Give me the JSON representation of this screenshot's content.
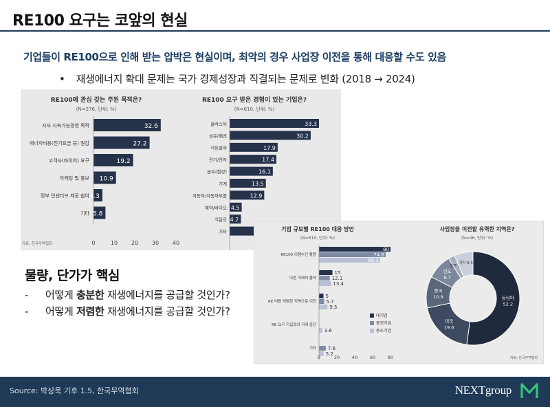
{
  "page": {
    "title": "RE100 요구는 코앞의 현실",
    "subtitle": "기업들이 RE100으로 인해 받는 압박은 현실이며, 최악의 경우 사업장 이전을 통해 대응할 수도 있음",
    "bullet_marker": "•",
    "bullet": "재생에너지 확대 문제는 국가 경제성장과 직결되는 문제로 변화 (2018 → 2024)"
  },
  "left_block": {
    "heading": "물량, 단가가 핵심",
    "items": [
      {
        "dash": "-",
        "pre": "어떻게 ",
        "emph": "충분한",
        "post": " 재생에너지를 공급할 것인가?"
      },
      {
        "dash": "-",
        "pre": "어떻게 ",
        "emph": "저렴한",
        "post": " 재생에너지를 공급할 것인가?"
      }
    ]
  },
  "footer": {
    "source": "Source: 박상욱 기후 1.5, 한국무역협회",
    "brand": "NEXTgroup"
  },
  "colors": {
    "navy": "#1e3a56",
    "bar_dark": "#25324a",
    "bar_mid": "#7d8ba3",
    "bar_light": "#b7c1d3",
    "panel_bg": "#e9e9e9"
  },
  "chart_data": [
    {
      "type": "bar",
      "orientation": "horizontal",
      "title": "RE100에 관심 갖는 주된 목적은?",
      "subtitle": "(N=276, 단위: %)",
      "categories": [
        "자사 지속가능경영 목적",
        "에너지비용(전기요금 등) 절감",
        "고객사(바이어) 요구",
        "마케팅 및 홍보",
        "정부 인센티브 제공 참여",
        "기타"
      ],
      "values": [
        32.6,
        27.2,
        19.2,
        10.9,
        4.3,
        5.8
      ],
      "xlim": [
        0,
        40
      ],
      "xticks": [
        "0",
        "10",
        "20",
        "30",
        "40"
      ],
      "source": "자료: 한국무역협회"
    },
    {
      "type": "bar",
      "orientation": "horizontal",
      "title": "RE100 요구 받은 경험이 있는 기업은?",
      "subtitle": "(N=610, 단위: %)",
      "categories": [
        "플라스틱",
        "섬유/패션",
        "석유화학",
        "전기/전자",
        "금속(철강)",
        "기계",
        "자동차/자동차부품",
        "제약/바이오",
        "식음료",
        "기타"
      ],
      "values": [
        33.3,
        30.2,
        17.9,
        17.4,
        16.1,
        13.5,
        12.9,
        4.5,
        4.2,
        null
      ],
      "labels": [
        "33.3",
        "30.2",
        "17.9",
        "17.4",
        "16.1",
        "13.5",
        "12.9",
        "4.5",
        "4.2",
        ""
      ]
    },
    {
      "type": "bar",
      "orientation": "horizontal",
      "title": "기업 규모별 RE100 대응 방안",
      "subtitle": "(N=610, 단위: %)",
      "categories": [
        "RE100 이행수단 활용",
        "다른 거래처 물색",
        "RE 비용 저렴한 지역으로 이전",
        "RE 요구 기업과의 거래 중단",
        "기타"
      ],
      "series": [
        {
          "name": "대기업",
          "values": [
            80,
            15,
            5,
            null,
            null
          ]
        },
        {
          "name": "중견기업",
          "values": [
            74.6,
            12.1,
            5.7,
            null,
            7.6
          ]
        },
        {
          "name": "중소기업",
          "values": [
            68.3,
            13.4,
            9.5,
            3.6,
            5.2
          ]
        }
      ],
      "xlim": [
        0,
        80
      ],
      "xticks": [
        "0",
        "20",
        "40",
        "60",
        "80"
      ]
    },
    {
      "type": "pie",
      "donut": true,
      "title": "사업장을 이전할 유력한 지역은?",
      "subtitle": "(N=46, 단위: %)",
      "labels": [
        "동남아",
        "미국",
        "중국",
        "인도",
        "호주",
        "기타"
      ],
      "values": [
        52.2,
        19.6,
        10.9,
        8.7,
        2.2,
        6.5
      ],
      "source": "자료: 한국무역협회"
    }
  ]
}
